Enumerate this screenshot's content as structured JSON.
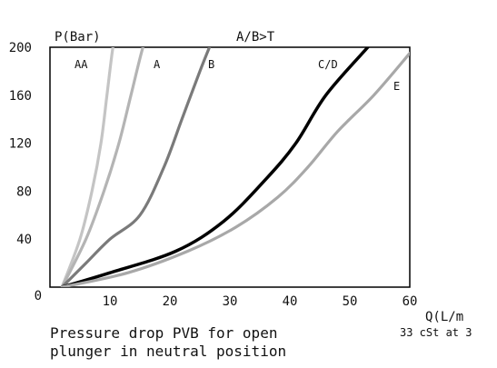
{
  "chart_data": {
    "type": "line",
    "title": "A/B>T",
    "ylabel": "P(Bar)",
    "xlabel": "Q(L/m",
    "xlabel_note": "33 cSt at 3",
    "caption": [
      "Pressure drop PVB for open",
      "plunger in neutral position"
    ],
    "xlim": [
      0,
      60
    ],
    "ylim": [
      0,
      200
    ],
    "x_ticks": [
      "10",
      "20",
      "30",
      "40",
      "50",
      "60"
    ],
    "y_ticks": [
      "0",
      "40",
      "80",
      "120",
      "160",
      "200"
    ],
    "grid": false,
    "series": [
      {
        "name": "AA",
        "color": "#c4c4c4",
        "x": [
          2,
          5,
          7,
          8.5,
          9.5,
          10.5,
          11.5
        ],
        "y": [
          0,
          40,
          80,
          120,
          160,
          200,
          225
        ]
      },
      {
        "name": "A",
        "color": "#b4b4b4",
        "x": [
          2,
          6,
          9,
          11.5,
          13.5,
          15.5,
          17,
          18.5
        ],
        "y": [
          0,
          40,
          80,
          120,
          160,
          200,
          220,
          240
        ]
      },
      {
        "name": "B",
        "color": "#7a7a7a",
        "x": [
          2,
          6,
          10,
          15,
          19,
          22,
          25,
          27
        ],
        "y": [
          0,
          20,
          40,
          60,
          100,
          140,
          180,
          205
        ]
      },
      {
        "name": "C/D",
        "color": "#000000",
        "x": [
          2,
          10,
          21,
          29,
          36,
          41,
          46,
          53
        ],
        "y": [
          0,
          12,
          30,
          55,
          90,
          120,
          160,
          200
        ]
      },
      {
        "name": "E",
        "color": "#a8a8a8",
        "x": [
          2,
          13,
          23,
          31,
          38,
          43,
          48,
          54,
          60
        ],
        "y": [
          0,
          12,
          30,
          50,
          75,
          100,
          130,
          160,
          195
        ]
      }
    ]
  }
}
